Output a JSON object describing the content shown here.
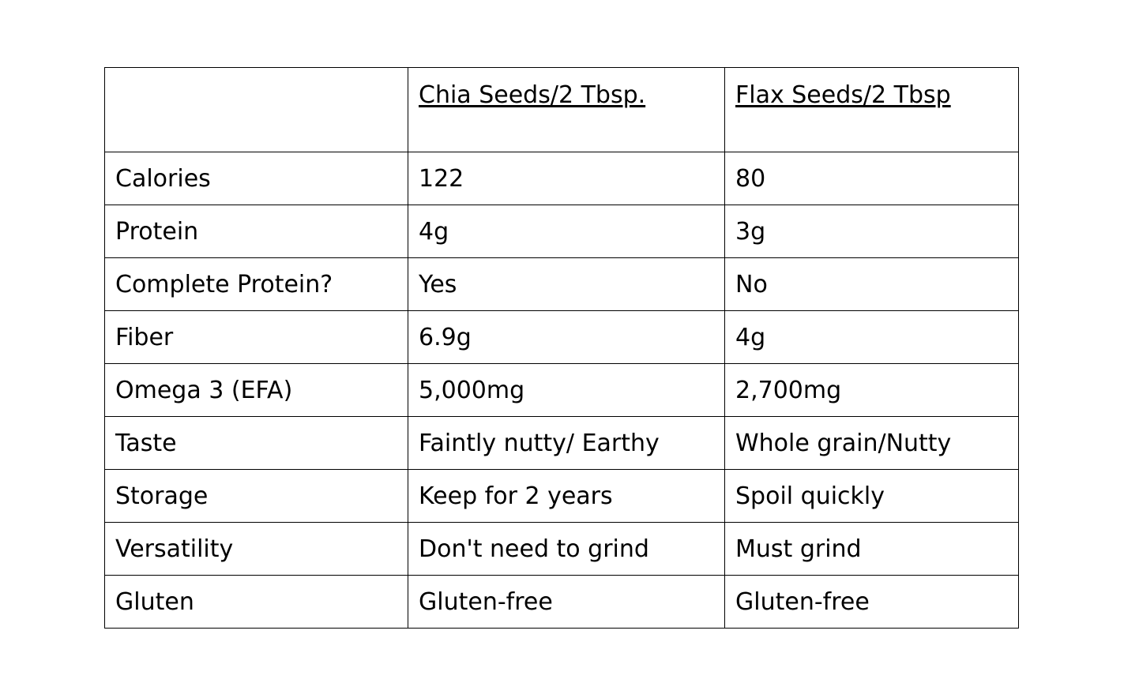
{
  "table": {
    "headers": [
      "",
      "Chia Seeds/2 Tbsp.",
      "Flax Seeds/2 Tbsp"
    ],
    "rows": [
      [
        "Calories",
        "122",
        "80"
      ],
      [
        "Protein",
        "4g",
        "3g"
      ],
      [
        "Complete Protein?",
        "Yes",
        "No"
      ],
      [
        "Fiber",
        "6.9g",
        "4g"
      ],
      [
        "Omega 3 (EFA)",
        "5,000mg",
        "2,700mg"
      ],
      [
        "Taste",
        "Faintly nutty/ Earthy",
        "Whole grain/Nutty"
      ],
      [
        "Storage",
        "Keep for 2 years",
        "Spoil quickly"
      ],
      [
        "Versatility",
        "Don't need to grind",
        "Must grind"
      ],
      [
        "Gluten",
        "Gluten-free",
        "Gluten-free"
      ]
    ]
  }
}
